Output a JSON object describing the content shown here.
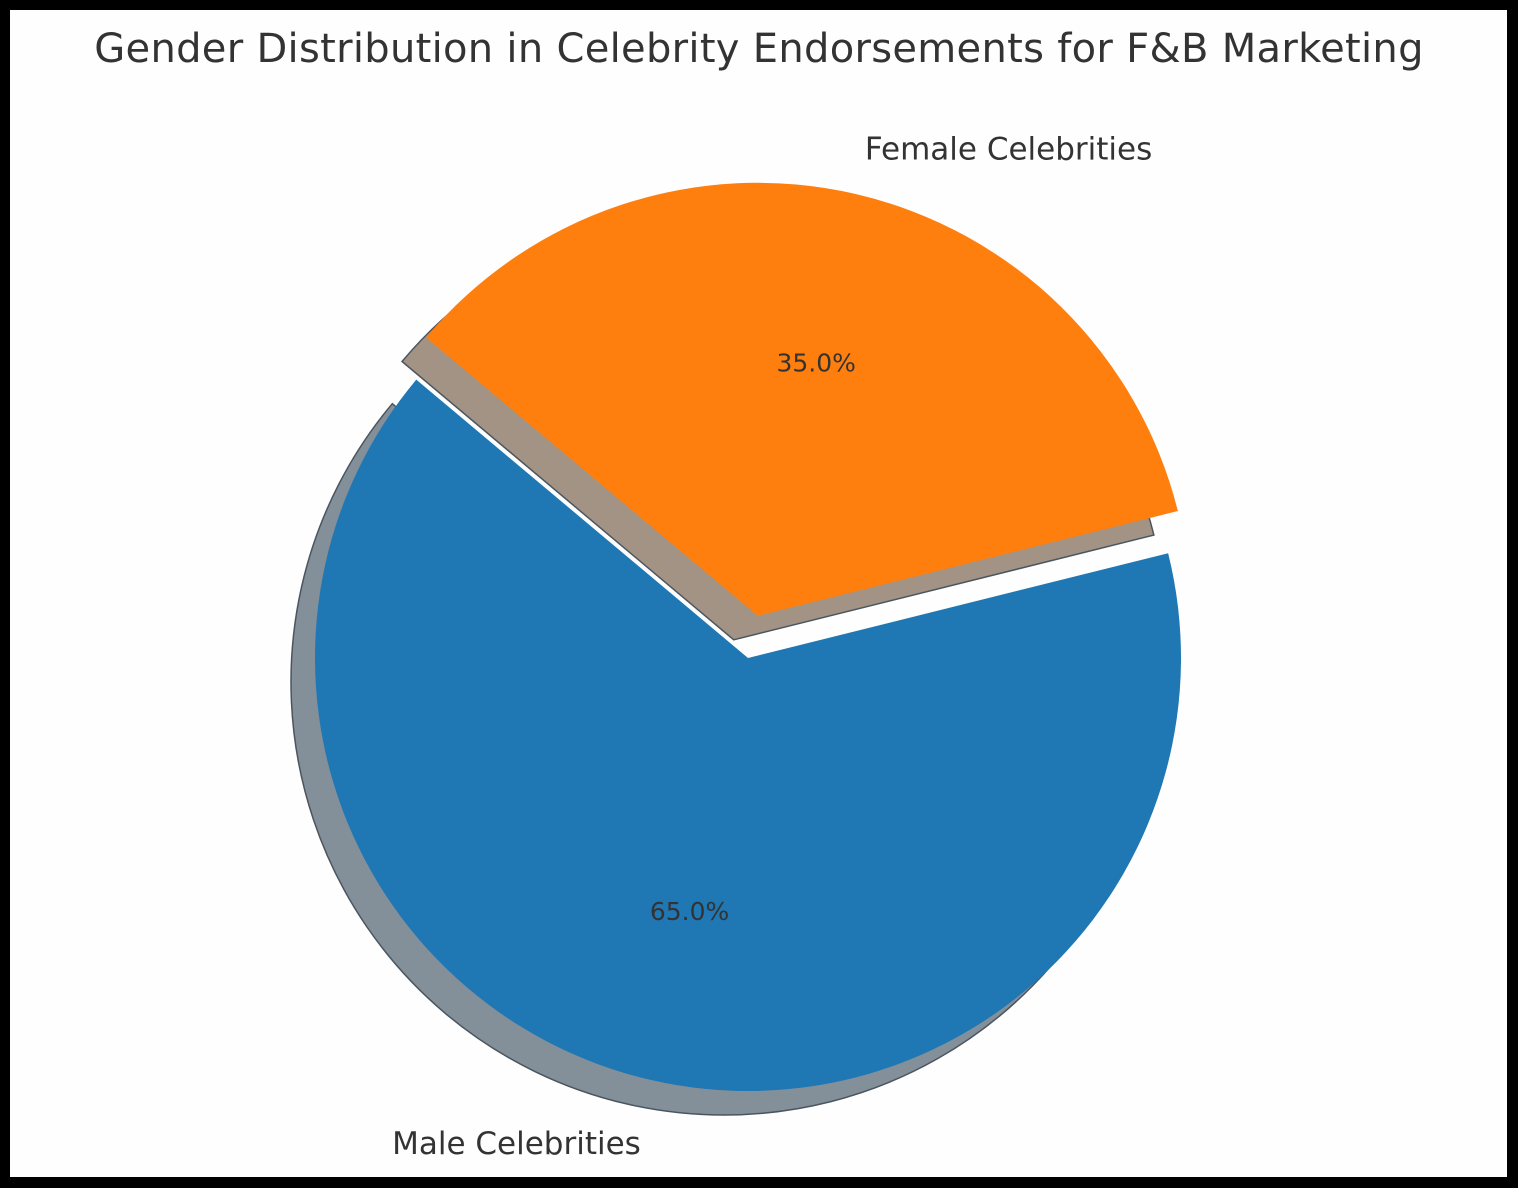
{
  "title": "Gender Distribution in Celebrity Endorsements for F&B Marketing",
  "chart_data": {
    "type": "pie",
    "title": "Gender Distribution in Celebrity Endorsements for F&B Marketing",
    "categories": [
      "Male Celebrities",
      "Female Celebrities"
    ],
    "values": [
      65.0,
      35.0
    ],
    "labels": [
      "Male Celebrities",
      "Female Celebrities"
    ],
    "autopct_labels": [
      "65.0%",
      "35.0%"
    ],
    "colors": [
      "#1f77b4",
      "#ff7f0e"
    ],
    "explode": [
      0,
      0.1
    ],
    "shadow": true,
    "startangle": 140,
    "legend": null
  },
  "slices": [
    {
      "label": "Male Celebrities",
      "pct": "65.0%",
      "color": "#1f77b4"
    },
    {
      "label": "Female Celebrities",
      "pct": "35.0%",
      "color": "#ff7f0e"
    }
  ]
}
